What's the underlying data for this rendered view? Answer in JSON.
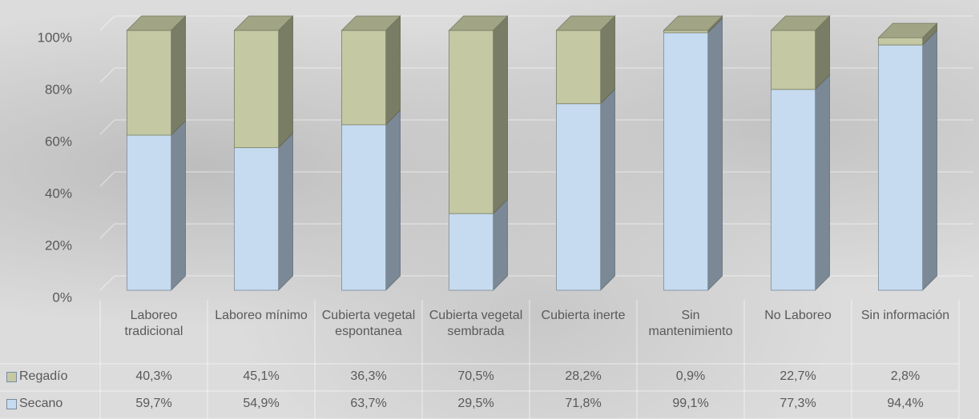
{
  "chart_data": {
    "type": "stacked-bar-3d",
    "categories": [
      "Laboreo tradicional",
      "Laboreo mínimo",
      "Cubierta vegetal espontanea",
      "Cubierta vegetal sembrada",
      "Cubierta inerte",
      "Sin mantenimiento",
      "No Laboreo",
      "Sin información"
    ],
    "series": [
      {
        "name": "Secano",
        "color": "#c6dbf0",
        "values": [
          59.7,
          54.9,
          63.7,
          29.5,
          71.8,
          99.1,
          77.3,
          94.4
        ],
        "value_labels": [
          "59,7%",
          "54,9%",
          "63,7%",
          "29,5%",
          "71,8%",
          "99,1%",
          "77,3%",
          "94,4%"
        ]
      },
      {
        "name": "Regadío",
        "color": "#c4c9a3",
        "values": [
          40.3,
          45.1,
          36.3,
          70.5,
          28.2,
          0.9,
          22.7,
          2.8
        ],
        "value_labels": [
          "40,3%",
          "45,1%",
          "36,3%",
          "70,5%",
          "28,2%",
          "0,9%",
          "22,7%",
          "2,8%"
        ]
      }
    ],
    "ylim": [
      0,
      100
    ],
    "yticks": [
      {
        "value": 0,
        "label": "0%"
      },
      {
        "value": 20,
        "label": "20%"
      },
      {
        "value": 40,
        "label": "40%"
      },
      {
        "value": 60,
        "label": "60%"
      },
      {
        "value": 80,
        "label": "80%"
      },
      {
        "value": 100,
        "label": "100%"
      }
    ],
    "grid": true,
    "legend": "data-table"
  }
}
